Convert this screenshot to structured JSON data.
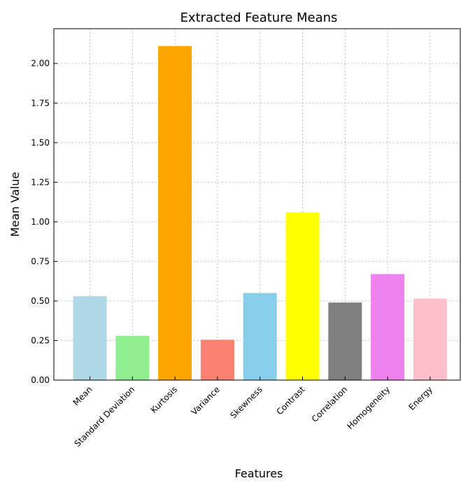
{
  "chart_data": {
    "type": "bar",
    "title": "Extracted Feature Means",
    "xlabel": "Features",
    "ylabel": "Mean Value",
    "categories": [
      "Mean",
      "Standard Deviation",
      "Kurtosis",
      "Variance",
      "Skewness",
      "Contrast",
      "Correlation",
      "Homogeneity",
      "Energy"
    ],
    "values": [
      0.53,
      0.28,
      2.11,
      0.255,
      0.55,
      1.06,
      0.49,
      0.67,
      0.515
    ],
    "colors": [
      "#add8e6",
      "#90ee90",
      "#ffa500",
      "#fa8072",
      "#87ceeb",
      "#ffff00",
      "#808080",
      "#ee82ee",
      "#ffc0cb"
    ],
    "ylim": [
      0,
      2.22
    ],
    "yticks": [
      0.0,
      0.25,
      0.5,
      0.75,
      1.0,
      1.25,
      1.5,
      1.75,
      2.0
    ],
    "ytick_labels": [
      "0.00",
      "0.25",
      "0.50",
      "0.75",
      "1.00",
      "1.25",
      "1.50",
      "1.75",
      "2.00"
    ],
    "grid": true,
    "legend": "none"
  }
}
